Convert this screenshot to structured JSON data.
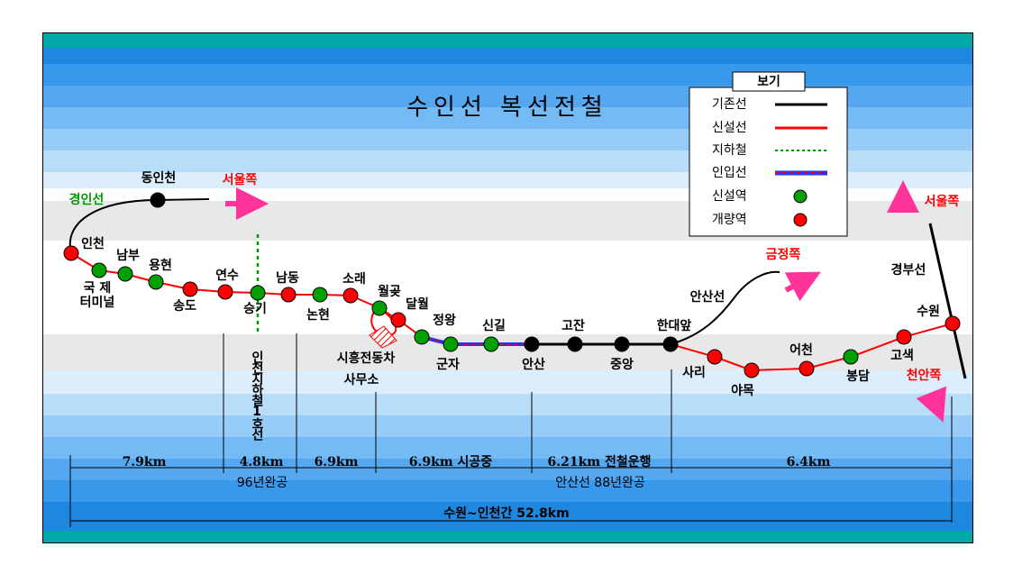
{
  "title": "수인선 복선전철",
  "legend": {
    "title": "보기",
    "items": [
      {
        "label": "기존선",
        "kind": "line",
        "color": "#000000"
      },
      {
        "label": "신설선",
        "kind": "line",
        "color": "#ff0000"
      },
      {
        "label": "지하철",
        "kind": "dashed",
        "color": "#009900"
      },
      {
        "label": "인입선",
        "kind": "lead",
        "color": "#2030ff"
      },
      {
        "label": "신설역",
        "kind": "station",
        "color": "#00a000"
      },
      {
        "label": "개량역",
        "kind": "station",
        "color": "#ff0000"
      }
    ]
  },
  "stations": [
    {
      "label": "인천",
      "color": "#ff0000"
    },
    {
      "label": [
        "국 제",
        "터미널"
      ],
      "color": "#00a000"
    },
    {
      "label": "남부",
      "color": "#00a000"
    },
    {
      "label": "용현",
      "color": "#00a000"
    },
    {
      "label": "송도",
      "color": "#ff0000"
    },
    {
      "label": "연수",
      "color": "#ff0000"
    },
    {
      "label": "승기",
      "color": "#00a000"
    },
    {
      "label": "남동",
      "color": "#ff0000"
    },
    {
      "label": "논현",
      "color": "#00a000"
    },
    {
      "label": "소래",
      "color": "#ff0000"
    },
    {
      "label": "월곶",
      "color": "#00a000"
    },
    {
      "label": "달월",
      "color": "#ff0000"
    },
    {
      "label": "정왕",
      "color": "#00a000"
    },
    {
      "label": "군자",
      "color": "#00a000"
    },
    {
      "label": "신길",
      "color": "#00a000"
    },
    {
      "label": "안산",
      "color": "#000000"
    },
    {
      "label": "고잔",
      "color": "#000000"
    },
    {
      "label": "중앙",
      "color": "#000000"
    },
    {
      "label": "한대앞",
      "color": "#000000"
    },
    {
      "label": "사리",
      "color": "#ff0000"
    },
    {
      "label": "야목",
      "color": "#ff0000"
    },
    {
      "label": "어천",
      "color": "#ff0000"
    },
    {
      "label": "봉담",
      "color": "#00a000"
    },
    {
      "label": "고색",
      "color": "#ff0000"
    },
    {
      "label": "수원",
      "color": "#ff0000"
    },
    {
      "label": "동인천",
      "color": "#000000"
    }
  ],
  "line_labels": [
    {
      "text": "경인선",
      "color": "#009900"
    },
    {
      "text": "서울쪽",
      "color": "#ff0000"
    },
    {
      "text": "금정쪽",
      "color": "#ff0000"
    },
    {
      "text": "안산선",
      "color": "#000000"
    },
    {
      "text": "경부선",
      "color": "#000000"
    },
    {
      "text": "서울쪽",
      "color": "#ff0000"
    },
    {
      "text": "천안쪽",
      "color": "#ff0000"
    }
  ],
  "notes": {
    "depot": [
      "시흥전동차",
      "사무소"
    ],
    "subway": "인천지하철1호선"
  },
  "sections": [
    {
      "text": "7.9km"
    },
    {
      "text": "4.8km",
      "note": "96년완공"
    },
    {
      "text": "6.9km"
    },
    {
      "text": "6.9km 시공중"
    },
    {
      "text": "6.21km 전철운행",
      "note": "안산선 88년완공"
    },
    {
      "text": "6.4km"
    }
  ],
  "total": "수원~인천간 52.8km"
}
